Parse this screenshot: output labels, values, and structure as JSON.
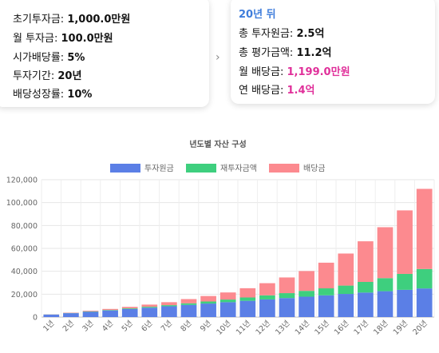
{
  "inputs": {
    "initial_label": "초기투자금: ",
    "initial_value": "1,000.0만원",
    "monthly_label": "월 투자금: ",
    "monthly_value": "100.0만원",
    "yield_label": "시가배당률: ",
    "yield_value": "5%",
    "period_label": "투자기간: ",
    "period_value": "20년",
    "growth_label": "배당성장률: ",
    "growth_value": "10%"
  },
  "results": {
    "title": "20년 뒤",
    "principal_label": "총 투자원금: ",
    "principal_value": "2.5억",
    "valuation_label": "총 평가금액: ",
    "valuation_value": "11.2억",
    "monthly_div_label": "월 배당금: ",
    "monthly_div_value": "1,199.0만원",
    "annual_div_label": "연 배당금: ",
    "annual_div_value": "1.4억"
  },
  "arrow_icon": "chevron-right-icon",
  "chart_data": {
    "type": "bar",
    "stacked": true,
    "title": "년도별 자산 구성",
    "categories": [
      "1년",
      "2년",
      "3년",
      "4년",
      "5년",
      "6년",
      "7년",
      "8년",
      "9년",
      "10년",
      "11년",
      "12년",
      "13년",
      "14년",
      "15년",
      "16년",
      "17년",
      "18년",
      "19년",
      "20년"
    ],
    "series": [
      {
        "name": "투자원금",
        "color": "#5b7fe6",
        "values": [
          2200,
          3400,
          4600,
          5800,
          7000,
          8200,
          9400,
          10600,
          11800,
          13000,
          14200,
          15400,
          16600,
          17800,
          19000,
          20200,
          21400,
          22600,
          23800,
          25000
        ]
      },
      {
        "name": "재투자금액",
        "color": "#3ecf7e",
        "values": [
          100,
          200,
          300,
          400,
          600,
          800,
          1000,
          1400,
          1800,
          2300,
          2900,
          3600,
          4300,
          5100,
          6100,
          7300,
          9300,
          11400,
          13900,
          17000
        ]
      },
      {
        "name": "배당금",
        "color": "#fc8a8f",
        "values": [
          100,
          300,
          600,
          900,
          1300,
          1900,
          2600,
          3700,
          4800,
          6200,
          8100,
          10600,
          13700,
          17300,
          22400,
          28000,
          35500,
          44500,
          55500,
          70000
        ]
      }
    ],
    "yticks": [
      "0",
      "20,000",
      "40,000",
      "60,000",
      "80,000",
      "100,000",
      "120,000"
    ],
    "ylim": [
      0,
      120000
    ],
    "grid": true,
    "legend": "top"
  }
}
